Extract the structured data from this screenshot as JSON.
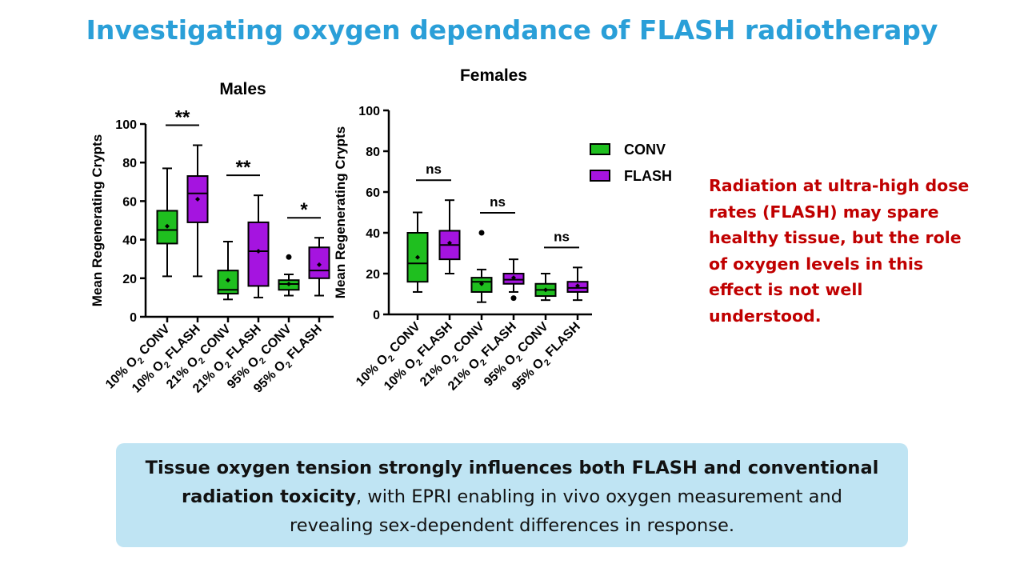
{
  "title": "Investigating oxygen dependance of FLASH radiotherapy",
  "colors": {
    "title": "#2a9fd8",
    "side_text": "#c00000",
    "conv": "#1fbf1f",
    "flash": "#a514e0",
    "summary_bg": "#bfe4f3"
  },
  "side_text": "Radiation at ultra-high dose rates (FLASH) may spare healthy tissue, but the role of oxygen levels in this effect is not well understood.",
  "summary": {
    "bold_part": "Tissue oxygen tension strongly influences both FLASH and conventional radiation toxicity",
    "rest": ", with EPRI enabling in vivo oxygen measurement and revealing sex-dependent differences in response."
  },
  "legend": [
    {
      "label": "CONV",
      "color_key": "conv"
    },
    {
      "label": "FLASH",
      "color_key": "flash"
    }
  ],
  "chart_data": [
    {
      "type": "boxplot",
      "title": "Males",
      "ylabel": "Mean Regenerating Crypts",
      "ylim": [
        0,
        100
      ],
      "yticks": [
        0,
        20,
        40,
        60,
        80,
        100
      ],
      "categories": [
        "10% O2 CONV",
        "10% O2 FLASH",
        "21% O2 CONV",
        "21% O2 FLASH",
        "95% O2 CONV",
        "95% O2 FLASH"
      ],
      "groups": [
        {
          "category": "10% O2 CONV",
          "series": "CONV",
          "min": 21,
          "q1": 38,
          "median": 45,
          "q3": 55,
          "max": 77,
          "mean": 47,
          "outliers": []
        },
        {
          "category": "10% O2 FLASH",
          "series": "FLASH",
          "min": 21,
          "q1": 49,
          "median": 64,
          "q3": 73,
          "max": 89,
          "mean": 61,
          "outliers": []
        },
        {
          "category": "21% O2 CONV",
          "series": "CONV",
          "min": 9,
          "q1": 12,
          "median": 14,
          "q3": 24,
          "max": 39,
          "mean": 19,
          "outliers": []
        },
        {
          "category": "21% O2 FLASH",
          "series": "FLASH",
          "min": 10,
          "q1": 16,
          "median": 34,
          "q3": 49,
          "max": 63,
          "mean": 34,
          "outliers": []
        },
        {
          "category": "95% O2 CONV",
          "series": "CONV",
          "min": 11,
          "q1": 14,
          "median": 17,
          "q3": 19,
          "max": 22,
          "mean": 17,
          "outliers": [
            31
          ]
        },
        {
          "category": "95% O2 FLASH",
          "series": "FLASH",
          "min": 11,
          "q1": 20,
          "median": 24,
          "q3": 36,
          "max": 41,
          "mean": 27,
          "outliers": []
        }
      ],
      "significance": [
        {
          "pair": [
            0,
            1
          ],
          "label": "**"
        },
        {
          "pair": [
            2,
            3
          ],
          "label": "**"
        },
        {
          "pair": [
            4,
            5
          ],
          "label": "*"
        }
      ]
    },
    {
      "type": "boxplot",
      "title": "Females",
      "ylabel": "Mean Regenerating Crypts",
      "ylim": [
        0,
        100
      ],
      "yticks": [
        0,
        20,
        40,
        60,
        80,
        100
      ],
      "categories": [
        "10% O2 CONV",
        "10% O2 FLASH",
        "21% O2 CONV",
        "21% O2 FLASH",
        "95% O2 CONV",
        "95% O2 FLASH"
      ],
      "groups": [
        {
          "category": "10% O2 CONV",
          "series": "CONV",
          "min": 11,
          "q1": 16,
          "median": 25,
          "q3": 40,
          "max": 50,
          "mean": 28,
          "outliers": []
        },
        {
          "category": "10% O2 FLASH",
          "series": "FLASH",
          "min": 20,
          "q1": 27,
          "median": 34,
          "q3": 41,
          "max": 56,
          "mean": 35,
          "outliers": []
        },
        {
          "category": "21% O2 CONV",
          "series": "CONV",
          "min": 6,
          "q1": 11,
          "median": 16,
          "q3": 18,
          "max": 22,
          "mean": 15,
          "outliers": [
            40
          ]
        },
        {
          "category": "21% O2 FLASH",
          "series": "FLASH",
          "min": 11,
          "q1": 15,
          "median": 17,
          "q3": 20,
          "max": 27,
          "mean": 18,
          "outliers": [
            8
          ]
        },
        {
          "category": "95% O2 CONV",
          "series": "CONV",
          "min": 7,
          "q1": 9,
          "median": 12,
          "q3": 15,
          "max": 20,
          "mean": 12,
          "outliers": []
        },
        {
          "category": "95% O2 FLASH",
          "series": "FLASH",
          "min": 7,
          "q1": 11,
          "median": 13,
          "q3": 16,
          "max": 23,
          "mean": 14,
          "outliers": []
        }
      ],
      "significance": [
        {
          "pair": [
            0,
            1
          ],
          "label": "ns"
        },
        {
          "pair": [
            2,
            3
          ],
          "label": "ns"
        },
        {
          "pair": [
            4,
            5
          ],
          "label": "ns"
        }
      ]
    }
  ]
}
